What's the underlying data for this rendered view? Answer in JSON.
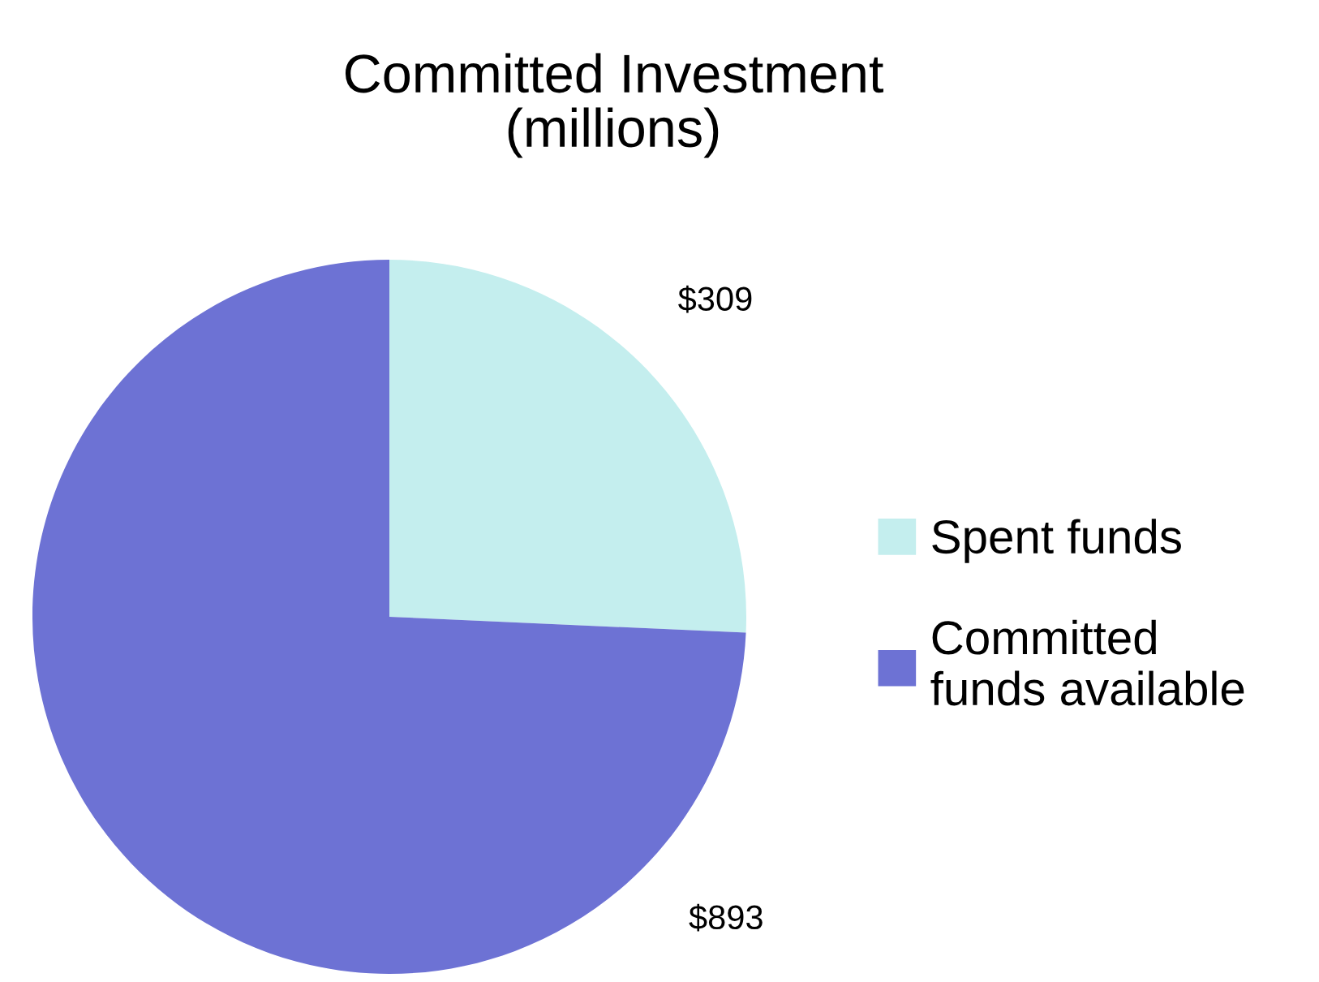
{
  "chart_data": {
    "type": "pie",
    "title": "Committed Investment\n(millions)",
    "categories": [
      "Spent funds",
      "Committed\nfunds available"
    ],
    "values": [
      309,
      893
    ],
    "colors": [
      "#c4eeee",
      "#6d72d4"
    ],
    "value_labels": [
      "$309",
      "$893"
    ],
    "legend": "right"
  }
}
